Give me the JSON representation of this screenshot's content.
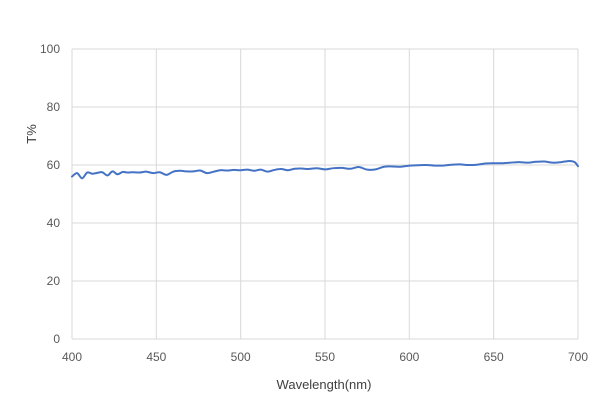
{
  "chart_data": {
    "type": "line",
    "xlabel": "Wavelength(nm)",
    "ylabel": "T%",
    "xlim": [
      400,
      700
    ],
    "ylim": [
      0,
      100
    ],
    "xticks": [
      400,
      450,
      500,
      550,
      600,
      650,
      700
    ],
    "yticks": [
      0,
      20,
      40,
      60,
      80,
      100
    ],
    "grid": true,
    "legend": "none",
    "series": [
      {
        "color": "#4472c4",
        "x": [
          400,
          403,
          406,
          409,
          412,
          415,
          418,
          421,
          424,
          427,
          430,
          433,
          436,
          440,
          444,
          448,
          452,
          456,
          460,
          464,
          468,
          472,
          476,
          480,
          484,
          488,
          492,
          496,
          500,
          504,
          508,
          512,
          516,
          520,
          524,
          528,
          532,
          536,
          540,
          545,
          550,
          555,
          560,
          565,
          570,
          575,
          580,
          585,
          590,
          595,
          600,
          605,
          610,
          615,
          620,
          625,
          630,
          635,
          640,
          645,
          650,
          655,
          660,
          665,
          670,
          675,
          680,
          685,
          690,
          695,
          698,
          700
        ],
        "y": [
          56.0,
          57.2,
          55.4,
          57.4,
          57.0,
          57.3,
          57.5,
          56.4,
          57.8,
          56.8,
          57.6,
          57.4,
          57.5,
          57.4,
          57.7,
          57.2,
          57.5,
          56.6,
          57.7,
          58.0,
          57.8,
          57.8,
          58.1,
          57.2,
          57.7,
          58.2,
          58.1,
          58.3,
          58.2,
          58.4,
          58.0,
          58.4,
          57.7,
          58.3,
          58.6,
          58.2,
          58.7,
          58.8,
          58.6,
          58.9,
          58.5,
          58.9,
          59.0,
          58.7,
          59.3,
          58.4,
          58.5,
          59.4,
          59.5,
          59.4,
          59.8,
          59.9,
          60.0,
          59.8,
          59.8,
          60.1,
          60.2,
          60.0,
          60.1,
          60.5,
          60.6,
          60.6,
          60.8,
          61.0,
          60.8,
          61.1,
          61.2,
          60.8,
          61.0,
          61.4,
          61.0,
          59.6
        ]
      }
    ]
  }
}
